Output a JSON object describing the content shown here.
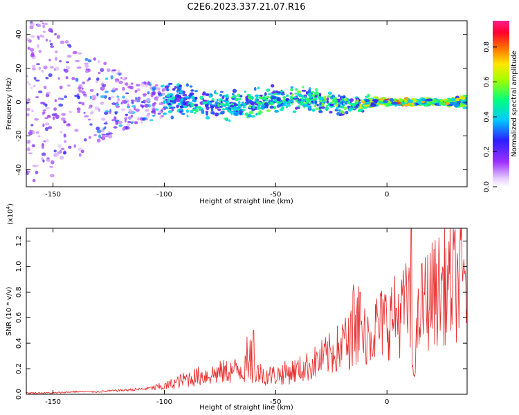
{
  "title": "C2E6.2023.337.21.07.R16",
  "chart_data": [
    {
      "type": "heatmap",
      "xlabel": "Height of straight line (km)",
      "ylabel": "Frequency (Hz)",
      "xlim": [
        -162,
        36
      ],
      "ylim": [
        -50,
        48
      ],
      "xticks": [
        -150,
        -100,
        -50,
        0
      ],
      "yticks": [
        -40,
        -20,
        0,
        20,
        40
      ],
      "colorbar": {
        "label": "Normalized spectral amplitude",
        "range": [
          0.0,
          0.95
        ],
        "ticks": [
          0.0,
          0.2,
          0.4,
          0.6,
          0.8
        ]
      },
      "description_points": [
        {
          "x": -155,
          "scatter_hz": 48,
          "level": 0.25
        },
        {
          "x": -130,
          "scatter_hz": 25,
          "level": 0.35
        },
        {
          "x": -110,
          "scatter_hz": 12,
          "level": 0.4
        },
        {
          "x": -80,
          "scatter_hz": 8,
          "level": 0.5
        },
        {
          "x": -50,
          "scatter_hz": 7,
          "level": 0.55
        },
        {
          "x": -20,
          "scatter_hz": 6,
          "level": 0.6
        },
        {
          "x": 0,
          "scatter_hz": 2,
          "level": 0.85
        },
        {
          "x": 20,
          "scatter_hz": 2,
          "level": 0.75
        },
        {
          "x": 35,
          "scatter_hz": 3,
          "level": 0.7
        }
      ]
    },
    {
      "type": "line",
      "xlabel": "Height of straight line (km)",
      "ylabel": "SNR (10 * v/v)",
      "yscale_label": "(x10",
      "yscale_exp": "4",
      "yscale_close": ")",
      "xlim": [
        -162,
        36
      ],
      "ylim": [
        0,
        1.3
      ],
      "xticks": [
        -150,
        -100,
        -50,
        0
      ],
      "yticks": [
        0.0,
        0.2,
        0.4,
        0.6,
        0.8,
        1.0,
        1.2
      ],
      "series": [
        {
          "name": "SNR",
          "color": "#e83030",
          "x": [
            -162,
            -150,
            -140,
            -130,
            -120,
            -110,
            -100,
            -95,
            -90,
            -85,
            -80,
            -75,
            -70,
            -65,
            -60,
            -55,
            -50,
            -45,
            -40,
            -35,
            -30,
            -25,
            -20,
            -15,
            -12,
            -10,
            -5,
            0,
            5,
            8,
            10,
            11,
            12,
            15,
            20,
            25,
            30,
            36
          ],
          "values": [
            0.01,
            0.01,
            0.02,
            0.02,
            0.03,
            0.04,
            0.06,
            0.09,
            0.12,
            0.14,
            0.15,
            0.17,
            0.18,
            0.2,
            0.19,
            0.15,
            0.15,
            0.17,
            0.19,
            0.22,
            0.27,
            0.32,
            0.38,
            0.45,
            0.5,
            0.48,
            0.52,
            0.58,
            0.62,
            0.66,
            0.72,
            0.3,
            0.22,
            0.68,
            0.78,
            0.84,
            0.87,
            0.9
          ],
          "spikes": [
            {
              "x": -60,
              "peak": 0.5
            },
            {
              "x": -15,
              "peak": 0.8
            },
            {
              "x": -12,
              "peak": 0.8
            },
            {
              "x": 8,
              "peak": 0.85
            },
            {
              "x": 11,
              "peak": 1.3
            },
            {
              "x": 12,
              "peak": 0.15
            }
          ]
        }
      ]
    }
  ]
}
